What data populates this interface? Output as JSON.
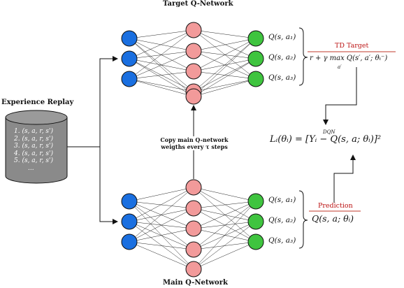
{
  "titles": {
    "target_network": "Target Q-Network",
    "main_network": "Main Q-Network",
    "experience_replay": "Experience Replay"
  },
  "replay_items": [
    "1. (s, a, r, s')",
    "2. (s, a, r, s')",
    "3. (s, a, r, s')",
    "4. (s, a, r, s')",
    "5. (s, a, r, s')",
    "..."
  ],
  "target_outputs": [
    "Q(s, a₁)",
    "Q(s, a₂)",
    "Q(s, a₃)"
  ],
  "main_outputs": [
    "Q(s, a₁)",
    "Q(s, a₂)",
    "Q(s, a₃)"
  ],
  "td_target": {
    "label": "TD Target",
    "formula": "r + γ max Q(s′, a′; θₜ⁻)",
    "sub": "a′"
  },
  "copy_note": {
    "line1": "Copy main Q-network",
    "line2": "weigths every τ steps"
  },
  "loss": {
    "formula": "Lᵢ(θᵢ) = [Yᵢ − Q(s, a; θᵢ)]²",
    "sup": "DQN"
  },
  "prediction": {
    "label": "Prediction",
    "formula": "Q(s, a; θᵢ)"
  },
  "colors": {
    "input": "#1a6fe0",
    "hidden": "#f29a9a",
    "output": "#3fc43f",
    "replay": "#8a8a8a",
    "accent_line": "#c0392b"
  }
}
